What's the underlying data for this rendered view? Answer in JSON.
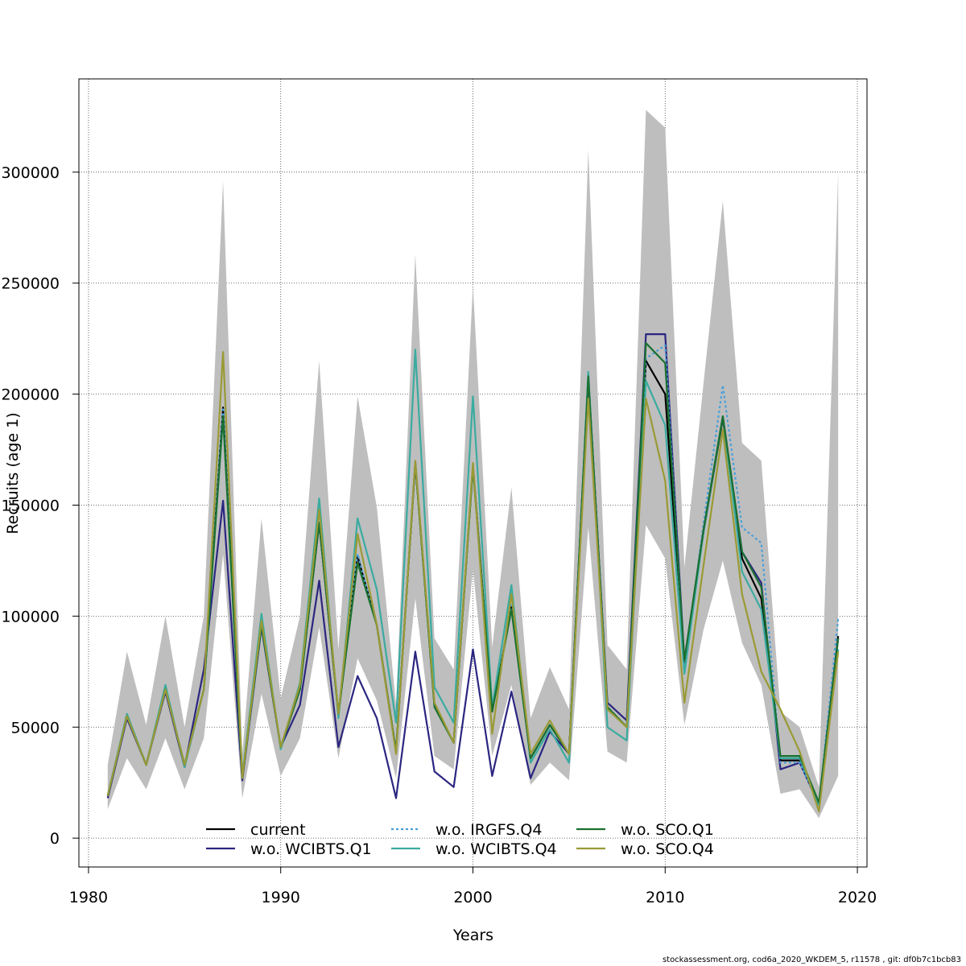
{
  "footer": "stockassessment.org, cod6a_2020_WKDEM_5, r11578 , git: df0b7c1bcb83",
  "chart_data": {
    "type": "line",
    "title": "",
    "xlabel": "Years",
    "ylabel": "Recruits (age 1)",
    "xlim": [
      1979.5,
      2020.5
    ],
    "ylim": [
      -13000,
      342000
    ],
    "x_ticks": [
      1980,
      1990,
      2000,
      2010,
      2020
    ],
    "y_ticks": [
      0,
      50000,
      100000,
      150000,
      200000,
      250000,
      300000
    ],
    "x_tick_labels": [
      "1980",
      "1990",
      "2000",
      "2010",
      "2020"
    ],
    "y_tick_labels": [
      "0",
      "50000",
      "100000",
      "150000",
      "200000",
      "250000",
      "300000"
    ],
    "grid": true,
    "legend_position": "bottom-center",
    "x": [
      1981,
      1982,
      1983,
      1984,
      1985,
      1986,
      1987,
      1988,
      1989,
      1990,
      1991,
      1992,
      1993,
      1994,
      1995,
      1996,
      1997,
      1998,
      1999,
      2000,
      2001,
      2002,
      2003,
      2004,
      2005,
      2006,
      2007,
      2008,
      2009,
      2010,
      2011,
      2012,
      2013,
      2014,
      2015,
      2016,
      2017,
      2018,
      2019
    ],
    "confidence_band": {
      "color": "#bebebe",
      "lower": [
        13000,
        36000,
        22000,
        45000,
        22000,
        45000,
        128000,
        18000,
        65000,
        28000,
        45000,
        95000,
        36000,
        81000,
        62000,
        27000,
        108000,
        37000,
        31000,
        121000,
        37000,
        69000,
        24000,
        34000,
        26000,
        140000,
        39000,
        34000,
        141000,
        126000,
        51000,
        94000,
        125000,
        88000,
        69000,
        20000,
        22000,
        9000,
        28000
      ],
      "upper": [
        33000,
        84000,
        51000,
        100000,
        50000,
        100000,
        296000,
        38000,
        144000,
        63000,
        100000,
        215000,
        85000,
        199000,
        149000,
        60000,
        263000,
        90000,
        76000,
        249000,
        86000,
        158000,
        54000,
        77000,
        58000,
        310000,
        87000,
        76000,
        328000,
        320000,
        122000,
        205000,
        287000,
        178000,
        170000,
        57000,
        50000,
        23000,
        300000
      ]
    },
    "series": [
      {
        "name": "current",
        "color": "#000000",
        "dash": "",
        "values": [
          19000,
          55000,
          33000,
          67000,
          33000,
          67000,
          194000,
          27000,
          96000,
          41000,
          67000,
          142000,
          56000,
          127000,
          96000,
          39000,
          169000,
          60000,
          43000,
          168000,
          57000,
          104000,
          36000,
          51000,
          38000,
          208000,
          59000,
          50000,
          215000,
          200000,
          79000,
          138000,
          189000,
          126000,
          108000,
          35000,
          35000,
          15000,
          91000
        ]
      },
      {
        "name": "w.o. WCIBTS.Q1",
        "color": "#2b2680",
        "dash": "",
        "values": [
          18000,
          54000,
          33000,
          66000,
          32000,
          76000,
          152000,
          26000,
          95000,
          41000,
          60000,
          116000,
          41000,
          73000,
          54000,
          18000,
          84000,
          30000,
          23000,
          85000,
          28000,
          66000,
          27000,
          48000,
          38000,
          207000,
          61000,
          53000,
          227000,
          227000,
          80000,
          139000,
          190000,
          129000,
          115000,
          31000,
          34000,
          15000,
          90000
        ]
      },
      {
        "name": "w.o. IRGFS.Q4",
        "color": "#4a9fd8",
        "dash": "3 3",
        "values": [
          19000,
          55000,
          33000,
          67000,
          33000,
          67000,
          194000,
          27000,
          96000,
          41000,
          67000,
          143000,
          57000,
          128000,
          96000,
          39000,
          170000,
          60000,
          43000,
          168000,
          57000,
          105000,
          36000,
          51000,
          38000,
          209000,
          59000,
          50000,
          216000,
          222000,
          76000,
          142000,
          204000,
          140000,
          133000,
          34000,
          34000,
          15000,
          99000
        ]
      },
      {
        "name": "w.o. WCIBTS.Q4",
        "color": "#3aaba0",
        "dash": "",
        "values": [
          19000,
          56000,
          33000,
          69000,
          32000,
          67000,
          190000,
          28000,
          101000,
          40000,
          70000,
          153000,
          54000,
          144000,
          112000,
          52000,
          220000,
          68000,
          52000,
          199000,
          59000,
          114000,
          34000,
          49000,
          34000,
          210000,
          50000,
          44000,
          206000,
          186000,
          74000,
          138000,
          190000,
          120000,
          103000,
          36000,
          36000,
          15000,
          85000
        ]
      },
      {
        "name": "w.o. SCO.Q1",
        "color": "#1a7030",
        "dash": "",
        "values": [
          19000,
          55000,
          33000,
          67000,
          33000,
          67000,
          190000,
          27000,
          96000,
          41000,
          67000,
          142000,
          56000,
          124000,
          96000,
          39000,
          169000,
          59000,
          43000,
          167000,
          57000,
          103000,
          36000,
          51000,
          38000,
          208000,
          59000,
          50000,
          223000,
          214000,
          80000,
          139000,
          190000,
          129000,
          113000,
          37000,
          37000,
          16000,
          90000
        ]
      },
      {
        "name": "w.o. SCO.Q4",
        "color": "#9a9a35",
        "dash": "",
        "values": [
          19000,
          55000,
          33000,
          67000,
          33000,
          67000,
          219000,
          27000,
          98000,
          41000,
          69000,
          148000,
          56000,
          137000,
          96000,
          38000,
          170000,
          61000,
          43000,
          169000,
          47000,
          110000,
          38000,
          53000,
          38000,
          198000,
          58000,
          50000,
          198000,
          161000,
          61000,
          123000,
          184000,
          110000,
          75000,
          58000,
          39000,
          12000,
          84000
        ]
      }
    ]
  }
}
